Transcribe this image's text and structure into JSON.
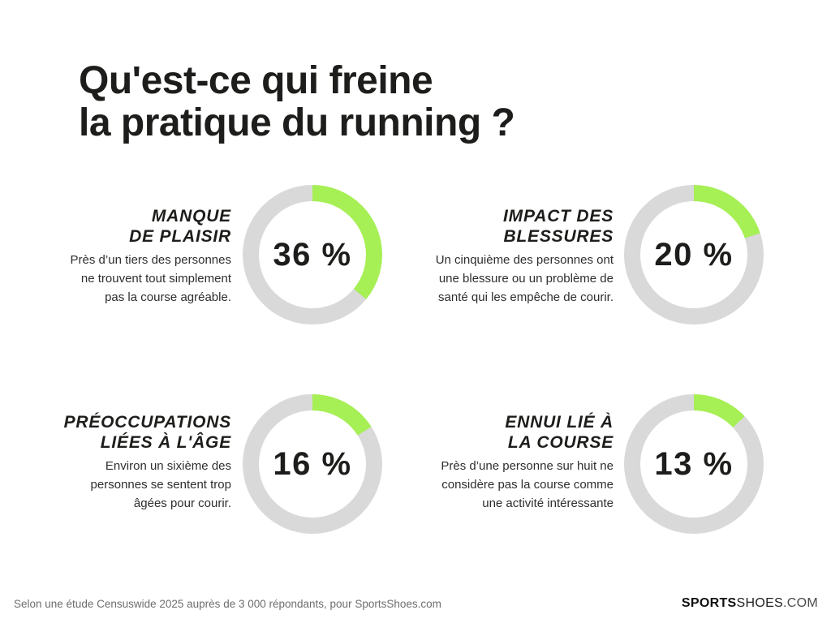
{
  "page": {
    "title_line1": "Qu'est-ce qui freine",
    "title_line2": "la pratique du running ?"
  },
  "colors": {
    "accent_green": "#A6EF55",
    "track_gray": "#D9D9D9",
    "text_dark": "#1D1D1B",
    "footer_gray": "#6E6E6E"
  },
  "cards": [
    {
      "heading_line1": "MANQUE",
      "heading_line2": "DE PLAISIR",
      "body_line1": "Près d’un tiers des personnes",
      "body_line2": "ne trouvent tout simplement",
      "body_line3": "pas la course agréable.",
      "percent": 36,
      "percent_label": "36 %"
    },
    {
      "heading_line1": "IMPACT DES",
      "heading_line2": "BLESSURES",
      "body_line1": "Un cinquième des personnes ont",
      "body_line2": "une blessure ou un problème de",
      "body_line3": "santé qui les empêche de courir.",
      "percent": 20,
      "percent_label": "20 %"
    },
    {
      "heading_line1": "PRÉOCCUPATIONS",
      "heading_line2": "LIÉES À L'ÂGE",
      "body_line1": "Environ un sixième des",
      "body_line2": "personnes se sentent trop",
      "body_line3": "âgées pour courir.",
      "percent": 16,
      "percent_label": "16 %"
    },
    {
      "heading_line1": "ENNUI LIÉ À",
      "heading_line2": "LA COURSE",
      "body_line1": "Près d’une personne sur huit ne",
      "body_line2": "considère pas la course comme",
      "body_line3": "une activité intéressante",
      "percent": 13,
      "percent_label": "13 %"
    }
  ],
  "footer": {
    "source": "Selon une étude Censuswide 2025 auprès de 3 000 répondants, pour SportsShoes.com",
    "logo_bold": "SPORTS",
    "logo_regular": "SHOES",
    "logo_suffix": ".COM"
  },
  "chart_data": {
    "type": "pie",
    "title": "Qu'est-ce qui freine la pratique du running ?",
    "unit": "%",
    "layout": "four separate donut gauges, green arc starts at 12 o'clock clockwise on light-gray track, value centered in hole",
    "series": [
      {
        "name": "Manque de plaisir",
        "value": 36
      },
      {
        "name": "Impact des blessures",
        "value": 20
      },
      {
        "name": "Préoccupations liées à l'âge",
        "value": 16
      },
      {
        "name": "Ennui lié à la course",
        "value": 13
      }
    ]
  }
}
